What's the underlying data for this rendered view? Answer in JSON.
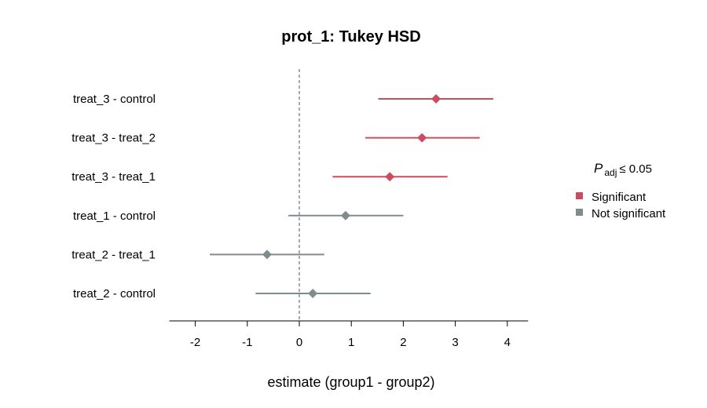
{
  "chart_data": {
    "type": "forest",
    "title": "prot_1: Tukey HSD",
    "xlabel": "estimate (group1 - group2)",
    "xlim": [
      -2.5,
      4.4
    ],
    "xticks": [
      -2,
      -1,
      0,
      1,
      2,
      3,
      4
    ],
    "reference_line": 0,
    "comparisons": [
      {
        "label": "treat_3 - control",
        "estimate": 2.63,
        "lower": 1.52,
        "upper": 3.73,
        "significant": true
      },
      {
        "label": "treat_3 - treat_2",
        "estimate": 2.36,
        "lower": 1.27,
        "upper": 3.47,
        "significant": true
      },
      {
        "label": "treat_3 - treat_1",
        "estimate": 1.74,
        "lower": 0.64,
        "upper": 2.85,
        "significant": true
      },
      {
        "label": "treat_1 - control",
        "estimate": 0.89,
        "lower": -0.21,
        "upper": 2.0,
        "significant": false
      },
      {
        "label": "treat_2 - treat_1",
        "estimate": -0.62,
        "lower": -1.72,
        "upper": 0.48,
        "significant": false
      },
      {
        "label": "treat_2 - control",
        "estimate": 0.26,
        "lower": -0.84,
        "upper": 1.37,
        "significant": false
      }
    ],
    "legend": {
      "title_main": "P",
      "title_sub": "adj",
      "title_rest": "≤ 0.05",
      "position": "right",
      "entries": [
        {
          "label": "Significant",
          "color": "#CC4C5F"
        },
        {
          "label": "Not significant",
          "color": "#7F8C8D"
        }
      ]
    },
    "colors": {
      "significant": "#CC4C5F",
      "not_significant": "#7F8C8D"
    }
  }
}
